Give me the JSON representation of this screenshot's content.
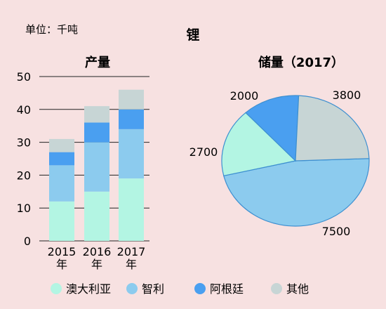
{
  "header": {
    "unit": "单位：千吨",
    "main_title": "锂"
  },
  "colors": {
    "background": "#f7e1e1",
    "australia": "#b3f5e3",
    "chile": "#8ccbee",
    "argentina": "#4a9ff0",
    "other": "#c7d5d5",
    "axis_line": "#222222"
  },
  "legend": {
    "items": [
      {
        "label": "澳大利亚",
        "color_key": "australia"
      },
      {
        "label": "智利",
        "color_key": "chile"
      },
      {
        "label": "阿根廷",
        "color_key": "argentina"
      },
      {
        "label": "其他",
        "color_key": "other"
      }
    ]
  },
  "chart_data": [
    {
      "type": "bar",
      "stacked": true,
      "title": "产量",
      "categories": [
        "2015年",
        "2016年",
        "2017年"
      ],
      "series": [
        {
          "name": "澳大利亚",
          "values": [
            12,
            15,
            19
          ]
        },
        {
          "name": "智利",
          "values": [
            11,
            15,
            15
          ]
        },
        {
          "name": "阿根廷",
          "values": [
            4,
            6,
            6
          ]
        },
        {
          "name": "其他",
          "values": [
            4,
            5,
            6
          ]
        }
      ],
      "ylim": [
        0,
        50
      ],
      "yticks": [
        "0",
        "10",
        "20",
        "30",
        "40",
        "50"
      ],
      "grid": true
    },
    {
      "type": "pie",
      "title": "储量（2017）",
      "slices": [
        {
          "name": "智利",
          "value": 7500,
          "label": "7500"
        },
        {
          "name": "澳大利亚",
          "value": 2700,
          "label": "2700"
        },
        {
          "name": "阿根廷",
          "value": 2000,
          "label": "2000"
        },
        {
          "name": "其他",
          "value": 3800,
          "label": "3800"
        }
      ]
    }
  ]
}
